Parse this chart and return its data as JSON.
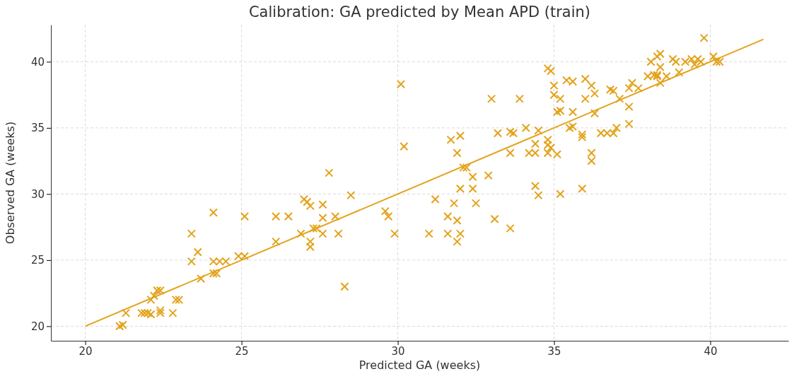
{
  "chart_data": {
    "type": "scatter",
    "title": "Calibration: GA predicted by Mean APD (train)",
    "xlabel": "Predicted GA (weeks)",
    "ylabel": "Observed GA (weeks)",
    "xlim": [
      18.9,
      42.5
    ],
    "ylim": [
      18.9,
      42.8
    ],
    "xticks": [
      20,
      25,
      30,
      35,
      40
    ],
    "yticks": [
      20,
      25,
      30,
      35,
      40
    ],
    "grid": true,
    "series": [
      {
        "marker": "cross",
        "color": "#e3a21a",
        "x": [
          21.1,
          21.2,
          21.3,
          21.8,
          21.9,
          22.0,
          22.1,
          22.1,
          22.2,
          22.3,
          22.4,
          22.4,
          22.4,
          22.8,
          22.9,
          23.0,
          23.4,
          23.4,
          23.6,
          23.7,
          24.1,
          24.1,
          24.1,
          24.2,
          24.3,
          24.5,
          24.9,
          25.1,
          25.1,
          26.1,
          26.1,
          26.5,
          26.9,
          27.0,
          27.1,
          27.2,
          27.2,
          27.2,
          27.3,
          27.4,
          27.6,
          27.6,
          27.6,
          27.8,
          28.0,
          28.1,
          28.3,
          28.5,
          29.6,
          29.7,
          29.9,
          30.1,
          30.2,
          31.0,
          31.2,
          31.6,
          31.6,
          31.7,
          31.8,
          31.9,
          31.9,
          31.9,
          32.0,
          32.0,
          32.0,
          32.1,
          32.2,
          32.4,
          32.4,
          32.5,
          32.9,
          33.0,
          33.1,
          33.2,
          33.6,
          33.6,
          33.6,
          33.7,
          33.9,
          34.1,
          34.2,
          34.4,
          34.4,
          34.4,
          34.5,
          34.5,
          34.8,
          34.8,
          34.8,
          34.8,
          34.9,
          34.9,
          35.0,
          35.0,
          35.1,
          35.1,
          35.2,
          35.2,
          35.2,
          35.4,
          35.5,
          35.6,
          35.6,
          35.6,
          35.9,
          35.9,
          35.9,
          36.0,
          36.0,
          36.2,
          36.2,
          36.2,
          36.3,
          36.3,
          36.5,
          36.7,
          36.8,
          36.9,
          36.9,
          37.0,
          37.1,
          37.4,
          37.4,
          37.4,
          37.5,
          37.7,
          38.0,
          38.1,
          38.2,
          38.3,
          38.3,
          38.3,
          38.4,
          38.4,
          38.4,
          38.6,
          38.8,
          38.9,
          39.0,
          39.2,
          39.4,
          39.5,
          39.6,
          39.7,
          39.8,
          40.1,
          40.2,
          40.3
        ],
        "values": [
          20.0,
          20.1,
          21.0,
          21.0,
          21.0,
          21.0,
          20.9,
          22.0,
          22.3,
          22.7,
          22.7,
          21.0,
          21.2,
          21.0,
          22.0,
          22.0,
          27.0,
          24.9,
          25.6,
          23.6,
          28.6,
          24.9,
          24.0,
          24.0,
          24.9,
          24.9,
          25.3,
          25.3,
          28.3,
          28.3,
          26.4,
          28.3,
          27.0,
          29.6,
          29.4,
          29.1,
          26.4,
          26.0,
          27.4,
          27.4,
          27.0,
          28.2,
          29.2,
          31.6,
          28.3,
          27.0,
          23.0,
          29.9,
          28.7,
          28.3,
          27.0,
          38.3,
          33.6,
          27.0,
          29.6,
          28.3,
          27.0,
          34.1,
          29.3,
          26.4,
          33.1,
          28.0,
          34.4,
          30.4,
          27.0,
          32.0,
          32.0,
          30.4,
          31.3,
          29.3,
          31.4,
          37.2,
          28.1,
          34.6,
          27.4,
          33.1,
          34.7,
          34.6,
          37.2,
          35.0,
          33.1,
          33.1,
          33.8,
          30.6,
          29.9,
          34.8,
          33.1,
          33.7,
          34.1,
          39.5,
          39.3,
          33.5,
          38.2,
          37.5,
          33.0,
          36.2,
          36.3,
          30.0,
          37.2,
          38.6,
          35.0,
          38.5,
          36.2,
          35.1,
          34.5,
          34.3,
          30.4,
          38.7,
          37.2,
          38.2,
          33.1,
          32.5,
          36.1,
          37.6,
          34.6,
          34.6,
          37.9,
          34.6,
          37.8,
          35.0,
          37.2,
          36.6,
          35.3,
          38.0,
          38.4,
          38.0,
          38.9,
          40.0,
          39.0,
          38.9,
          39.0,
          40.4,
          38.4,
          39.6,
          40.6,
          38.9,
          40.2,
          40.0,
          39.2,
          40.0,
          40.2,
          39.8,
          40.2,
          40.0,
          41.8,
          40.4,
          40.0,
          40.0
        ]
      },
      {
        "type": "line",
        "color": "#e3a21a",
        "x": [
          20,
          41.7
        ],
        "values": [
          20,
          41.7
        ]
      }
    ]
  }
}
